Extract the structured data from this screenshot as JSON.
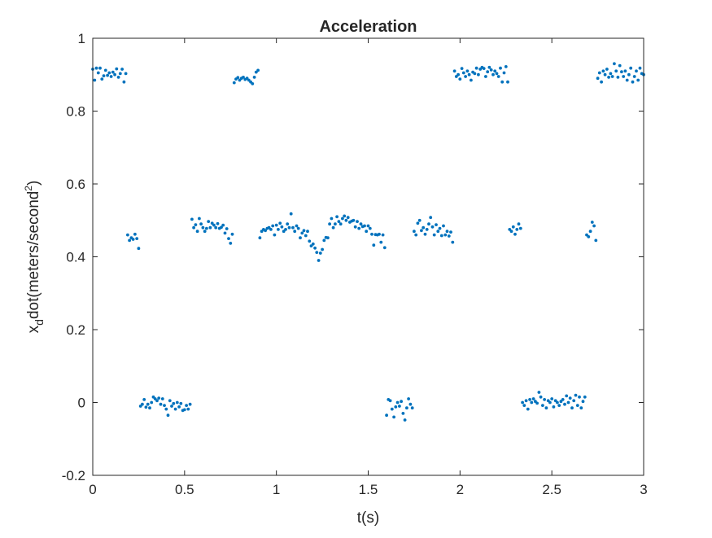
{
  "chart_data": {
    "type": "scatter",
    "title": "Acceleration",
    "xlabel": "t(s)",
    "ylabel": {
      "prefix": "x",
      "subscript": "d",
      "main": "dot(meters/second",
      "superscript": "2",
      "suffix": ")"
    },
    "xlim": [
      0,
      3
    ],
    "ylim": [
      -0.2,
      1
    ],
    "xticks": [
      "0",
      "0.5",
      "1",
      "1.5",
      "2",
      "2.5",
      "3"
    ],
    "yticks": [
      "-0.2",
      "0",
      "0.2",
      "0.4",
      "0.6",
      "0.8",
      "1"
    ],
    "grid": false,
    "marker_color": "#0072BD",
    "axes_color": "#262626",
    "series": [
      {
        "points": [
          [
            0.0,
            0.915
          ],
          [
            0.01,
            0.885
          ],
          [
            0.02,
            0.918
          ],
          [
            0.03,
            0.905
          ],
          [
            0.04,
            0.918
          ],
          [
            0.05,
            0.888
          ],
          [
            0.06,
            0.897
          ],
          [
            0.07,
            0.912
          ],
          [
            0.08,
            0.898
          ],
          [
            0.09,
            0.905
          ],
          [
            0.1,
            0.895
          ],
          [
            0.11,
            0.907
          ],
          [
            0.12,
            0.9
          ],
          [
            0.13,
            0.916
          ],
          [
            0.14,
            0.893
          ],
          [
            0.15,
            0.903
          ],
          [
            0.16,
            0.915
          ],
          [
            0.17,
            0.88
          ],
          [
            0.18,
            0.903
          ],
          [
            0.19,
            0.46
          ],
          [
            0.2,
            0.445
          ],
          [
            0.21,
            0.452
          ],
          [
            0.22,
            0.448
          ],
          [
            0.23,
            0.462
          ],
          [
            0.24,
            0.45
          ],
          [
            0.25,
            0.423
          ],
          [
            0.26,
            -0.01
          ],
          [
            0.27,
            -0.005
          ],
          [
            0.28,
            0.008
          ],
          [
            0.29,
            -0.013
          ],
          [
            0.3,
            -0.005
          ],
          [
            0.31,
            -0.015
          ],
          [
            0.32,
            0.0
          ],
          [
            0.33,
            0.015
          ],
          [
            0.34,
            0.01
          ],
          [
            0.35,
            0.005
          ],
          [
            0.36,
            0.012
          ],
          [
            0.37,
            -0.005
          ],
          [
            0.38,
            0.01
          ],
          [
            0.39,
            -0.008
          ],
          [
            0.4,
            -0.018
          ],
          [
            0.41,
            -0.035
          ],
          [
            0.42,
            0.005
          ],
          [
            0.43,
            -0.01
          ],
          [
            0.44,
            -0.003
          ],
          [
            0.45,
            -0.018
          ],
          [
            0.46,
            0.0
          ],
          [
            0.47,
            -0.012
          ],
          [
            0.48,
            -0.003
          ],
          [
            0.49,
            -0.022
          ],
          [
            0.5,
            -0.02
          ],
          [
            0.51,
            -0.008
          ],
          [
            0.52,
            -0.018
          ],
          [
            0.53,
            -0.005
          ],
          [
            0.54,
            0.503
          ],
          [
            0.55,
            0.48
          ],
          [
            0.56,
            0.488
          ],
          [
            0.57,
            0.47
          ],
          [
            0.58,
            0.505
          ],
          [
            0.59,
            0.49
          ],
          [
            0.6,
            0.48
          ],
          [
            0.61,
            0.47
          ],
          [
            0.62,
            0.478
          ],
          [
            0.63,
            0.497
          ],
          [
            0.64,
            0.48
          ],
          [
            0.65,
            0.492
          ],
          [
            0.66,
            0.487
          ],
          [
            0.67,
            0.48
          ],
          [
            0.68,
            0.491
          ],
          [
            0.69,
            0.478
          ],
          [
            0.7,
            0.481
          ],
          [
            0.71,
            0.487
          ],
          [
            0.72,
            0.465
          ],
          [
            0.73,
            0.477
          ],
          [
            0.74,
            0.45
          ],
          [
            0.75,
            0.437
          ],
          [
            0.76,
            0.462
          ],
          [
            0.77,
            0.878
          ],
          [
            0.78,
            0.888
          ],
          [
            0.79,
            0.892
          ],
          [
            0.8,
            0.885
          ],
          [
            0.81,
            0.89
          ],
          [
            0.82,
            0.893
          ],
          [
            0.83,
            0.887
          ],
          [
            0.84,
            0.89
          ],
          [
            0.85,
            0.885
          ],
          [
            0.86,
            0.88
          ],
          [
            0.87,
            0.875
          ],
          [
            0.88,
            0.893
          ],
          [
            0.89,
            0.907
          ],
          [
            0.9,
            0.912
          ],
          [
            0.91,
            0.452
          ],
          [
            0.92,
            0.47
          ],
          [
            0.93,
            0.475
          ],
          [
            0.94,
            0.472
          ],
          [
            0.95,
            0.478
          ],
          [
            0.96,
            0.48
          ],
          [
            0.97,
            0.475
          ],
          [
            0.98,
            0.485
          ],
          [
            0.99,
            0.46
          ],
          [
            1.0,
            0.487
          ],
          [
            1.01,
            0.475
          ],
          [
            1.02,
            0.492
          ],
          [
            1.03,
            0.482
          ],
          [
            1.04,
            0.47
          ],
          [
            1.05,
            0.475
          ],
          [
            1.06,
            0.49
          ],
          [
            1.07,
            0.48
          ],
          [
            1.08,
            0.518
          ],
          [
            1.09,
            0.48
          ],
          [
            1.1,
            0.47
          ],
          [
            1.11,
            0.485
          ],
          [
            1.12,
            0.478
          ],
          [
            1.13,
            0.452
          ],
          [
            1.14,
            0.465
          ],
          [
            1.15,
            0.472
          ],
          [
            1.16,
            0.458
          ],
          [
            1.17,
            0.47
          ],
          [
            1.18,
            0.443
          ],
          [
            1.19,
            0.43
          ],
          [
            1.2,
            0.435
          ],
          [
            1.21,
            0.424
          ],
          [
            1.22,
            0.412
          ],
          [
            1.23,
            0.39
          ],
          [
            1.24,
            0.41
          ],
          [
            1.25,
            0.42
          ],
          [
            1.26,
            0.445
          ],
          [
            1.27,
            0.453
          ],
          [
            1.28,
            0.452
          ],
          [
            1.29,
            0.49
          ],
          [
            1.3,
            0.505
          ],
          [
            1.31,
            0.48
          ],
          [
            1.32,
            0.49
          ],
          [
            1.33,
            0.51
          ],
          [
            1.34,
            0.497
          ],
          [
            1.35,
            0.49
          ],
          [
            1.36,
            0.505
          ],
          [
            1.37,
            0.512
          ],
          [
            1.38,
            0.5
          ],
          [
            1.39,
            0.508
          ],
          [
            1.4,
            0.495
          ],
          [
            1.41,
            0.498
          ],
          [
            1.42,
            0.5
          ],
          [
            1.43,
            0.482
          ],
          [
            1.44,
            0.497
          ],
          [
            1.45,
            0.478
          ],
          [
            1.46,
            0.49
          ],
          [
            1.47,
            0.483
          ],
          [
            1.48,
            0.485
          ],
          [
            1.49,
            0.47
          ],
          [
            1.5,
            0.485
          ],
          [
            1.51,
            0.478
          ],
          [
            1.52,
            0.462
          ],
          [
            1.53,
            0.432
          ],
          [
            1.54,
            0.461
          ],
          [
            1.55,
            0.46
          ],
          [
            1.56,
            0.462
          ],
          [
            1.57,
            0.44
          ],
          [
            1.58,
            0.46
          ],
          [
            1.59,
            0.425
          ],
          [
            1.6,
            -0.035
          ],
          [
            1.61,
            0.008
          ],
          [
            1.62,
            0.005
          ],
          [
            1.63,
            -0.018
          ],
          [
            1.64,
            -0.04
          ],
          [
            1.65,
            -0.012
          ],
          [
            1.66,
            0.0
          ],
          [
            1.67,
            -0.01
          ],
          [
            1.68,
            0.003
          ],
          [
            1.69,
            -0.03
          ],
          [
            1.7,
            -0.048
          ],
          [
            1.71,
            -0.015
          ],
          [
            1.72,
            0.01
          ],
          [
            1.73,
            -0.005
          ],
          [
            1.74,
            -0.015
          ],
          [
            1.75,
            0.47
          ],
          [
            1.76,
            0.46
          ],
          [
            1.77,
            0.492
          ],
          [
            1.78,
            0.5
          ],
          [
            1.79,
            0.472
          ],
          [
            1.8,
            0.48
          ],
          [
            1.81,
            0.462
          ],
          [
            1.82,
            0.475
          ],
          [
            1.83,
            0.49
          ],
          [
            1.84,
            0.508
          ],
          [
            1.85,
            0.482
          ],
          [
            1.86,
            0.46
          ],
          [
            1.87,
            0.488
          ],
          [
            1.88,
            0.47
          ],
          [
            1.89,
            0.478
          ],
          [
            1.9,
            0.458
          ],
          [
            1.91,
            0.485
          ],
          [
            1.92,
            0.46
          ],
          [
            1.93,
            0.47
          ],
          [
            1.94,
            0.457
          ],
          [
            1.95,
            0.468
          ],
          [
            1.96,
            0.44
          ],
          [
            1.97,
            0.91
          ],
          [
            1.98,
            0.895
          ],
          [
            1.99,
            0.9
          ],
          [
            2.0,
            0.888
          ],
          [
            2.01,
            0.917
          ],
          [
            2.02,
            0.905
          ],
          [
            2.03,
            0.895
          ],
          [
            2.04,
            0.91
          ],
          [
            2.05,
            0.9
          ],
          [
            2.06,
            0.885
          ],
          [
            2.07,
            0.907
          ],
          [
            2.08,
            0.903
          ],
          [
            2.09,
            0.918
          ],
          [
            2.1,
            0.9
          ],
          [
            2.11,
            0.915
          ],
          [
            2.12,
            0.92
          ],
          [
            2.13,
            0.917
          ],
          [
            2.14,
            0.895
          ],
          [
            2.15,
            0.908
          ],
          [
            2.16,
            0.92
          ],
          [
            2.17,
            0.913
          ],
          [
            2.18,
            0.9
          ],
          [
            2.19,
            0.91
          ],
          [
            2.2,
            0.903
          ],
          [
            2.21,
            0.895
          ],
          [
            2.22,
            0.918
          ],
          [
            2.23,
            0.88
          ],
          [
            2.24,
            0.905
          ],
          [
            2.25,
            0.922
          ],
          [
            2.26,
            0.88
          ],
          [
            2.27,
            0.475
          ],
          [
            2.28,
            0.47
          ],
          [
            2.29,
            0.482
          ],
          [
            2.3,
            0.462
          ],
          [
            2.31,
            0.475
          ],
          [
            2.32,
            0.49
          ],
          [
            2.33,
            0.478
          ],
          [
            2.34,
            0.0
          ],
          [
            2.35,
            -0.008
          ],
          [
            2.36,
            0.005
          ],
          [
            2.37,
            -0.018
          ],
          [
            2.38,
            0.008
          ],
          [
            2.39,
            0.0
          ],
          [
            2.4,
            0.01
          ],
          [
            2.41,
            0.003
          ],
          [
            2.42,
            -0.002
          ],
          [
            2.43,
            0.028
          ],
          [
            2.44,
            0.015
          ],
          [
            2.45,
            -0.008
          ],
          [
            2.46,
            0.008
          ],
          [
            2.47,
            -0.015
          ],
          [
            2.48,
            0.005
          ],
          [
            2.49,
            0.0
          ],
          [
            2.5,
            0.01
          ],
          [
            2.51,
            -0.012
          ],
          [
            2.52,
            0.005
          ],
          [
            2.53,
            0.0
          ],
          [
            2.54,
            -0.008
          ],
          [
            2.55,
            0.003
          ],
          [
            2.56,
            0.008
          ],
          [
            2.57,
            -0.005
          ],
          [
            2.58,
            0.018
          ],
          [
            2.59,
            0.0
          ],
          [
            2.6,
            0.012
          ],
          [
            2.61,
            -0.015
          ],
          [
            2.62,
            0.005
          ],
          [
            2.63,
            0.02
          ],
          [
            2.64,
            -0.008
          ],
          [
            2.65,
            0.015
          ],
          [
            2.66,
            -0.015
          ],
          [
            2.67,
            0.003
          ],
          [
            2.68,
            0.015
          ],
          [
            2.69,
            0.46
          ],
          [
            2.7,
            0.455
          ],
          [
            2.71,
            0.47
          ],
          [
            2.72,
            0.495
          ],
          [
            2.73,
            0.485
          ],
          [
            2.74,
            0.445
          ],
          [
            2.75,
            0.89
          ],
          [
            2.76,
            0.905
          ],
          [
            2.77,
            0.88
          ],
          [
            2.78,
            0.91
          ],
          [
            2.79,
            0.9
          ],
          [
            2.8,
            0.915
          ],
          [
            2.81,
            0.893
          ],
          [
            2.82,
            0.903
          ],
          [
            2.83,
            0.895
          ],
          [
            2.84,
            0.93
          ],
          [
            2.85,
            0.91
          ],
          [
            2.86,
            0.893
          ],
          [
            2.87,
            0.925
          ],
          [
            2.88,
            0.908
          ],
          [
            2.89,
            0.895
          ],
          [
            2.9,
            0.91
          ],
          [
            2.91,
            0.885
          ],
          [
            2.92,
            0.9
          ],
          [
            2.93,
            0.918
          ],
          [
            2.94,
            0.88
          ],
          [
            2.95,
            0.895
          ],
          [
            2.96,
            0.91
          ],
          [
            2.97,
            0.885
          ],
          [
            2.98,
            0.918
          ],
          [
            2.99,
            0.903
          ],
          [
            3.0,
            0.9
          ]
        ]
      }
    ]
  }
}
